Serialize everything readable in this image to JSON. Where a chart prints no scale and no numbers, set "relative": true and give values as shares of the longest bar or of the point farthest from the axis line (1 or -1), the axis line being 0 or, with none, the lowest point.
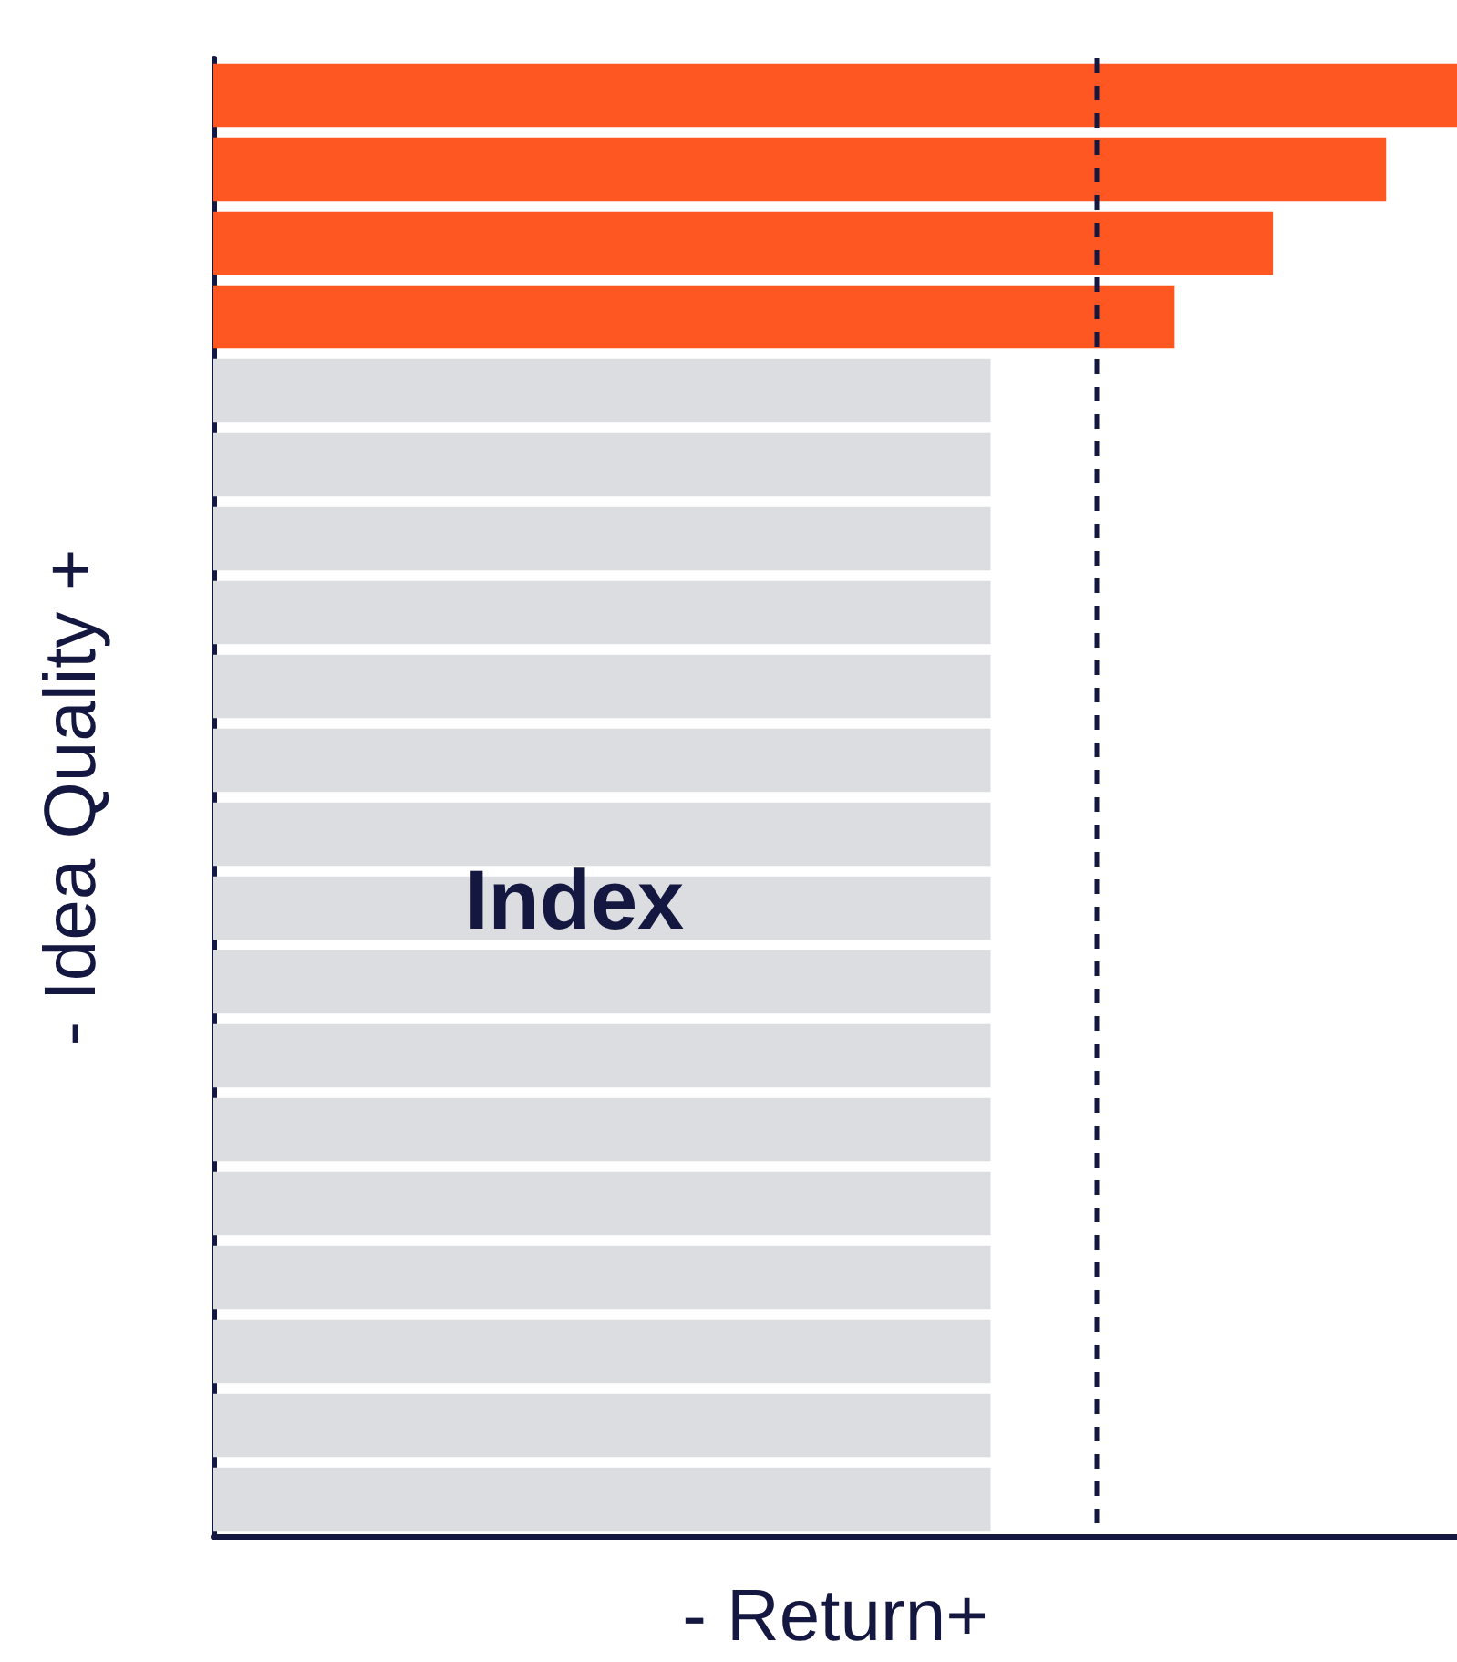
{
  "chart_data": {
    "type": "bar",
    "orientation": "horizontal",
    "relative": true,
    "xlabel": "- Return+",
    "ylabel": "- Idea Quality +",
    "categories": [
      null,
      null,
      null,
      null,
      null,
      null,
      null,
      null,
      null,
      null,
      null,
      null,
      null,
      null,
      null,
      null,
      null,
      null,
      null,
      null
    ],
    "values": [
      1,
      0.943,
      0.852,
      0.773,
      0.625,
      0.625,
      0.625,
      0.625,
      0.625,
      0.625,
      0.625,
      0.625,
      0.625,
      0.625,
      0.625,
      0.625,
      0.625,
      0.625,
      0.625,
      0.625
    ],
    "colors": [
      "#fe5722",
      "#fe5722",
      "#fe5722",
      "#fe5722",
      "#dcdde0",
      "#dcdde0",
      "#dcdde0",
      "#dcdde0",
      "#dcdde0",
      "#dcdde0",
      "#dcdde0",
      "#dcdde0",
      "#dcdde0",
      "#dcdde0",
      "#dcdde0",
      "#dcdde0",
      "#dcdde0",
      "#dcdde0",
      "#dcdde0",
      "#dcdde0"
    ],
    "ref_lines": [
      {
        "axis": "x",
        "value": 0.708,
        "color": "#14173f",
        "line_style": "dashed"
      }
    ],
    "annotations": [
      "Index"
    ],
    "grid": false
  }
}
